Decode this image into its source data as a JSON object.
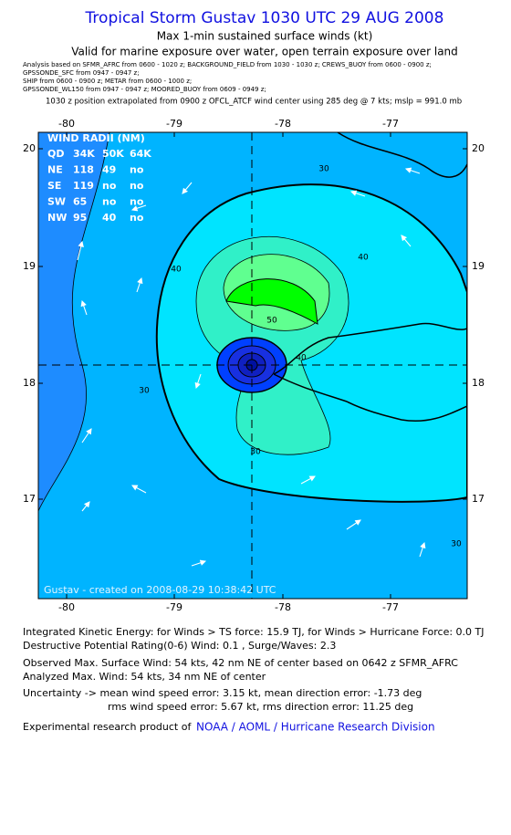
{
  "header": {
    "title": "Tropical Storm Gustav 1030 UTC 29 AUG 2008",
    "subtitle": "Max 1-min sustained surface winds (kt)",
    "valid": "Valid for marine exposure over water, open terrain exposure over land",
    "sources": [
      "Analysis based on  SFMR_AFRC from 0600 - 1020 z;  BACKGROUND_FIELD from 1030 - 1030 z;  CREWS_BUOY from 0600 - 0900 z;",
      "GPSSONDE_SFC from 0947 - 0947 z;",
      "SHIP from 0600 - 0900 z;  METAR from 0600 - 1000 z;",
      "GPSSONDE_WL150 from 0947 - 0947 z;  MOORED_BUOY from 0609 - 0949 z;"
    ],
    "position": "1030 z position extrapolated from 0900 z OFCL_ATCF wind center using 285 deg @ 7 kts; mslp = 991.0 mb"
  },
  "map": {
    "xticks": [
      "-80",
      "-79",
      "-78",
      "-77"
    ],
    "yticks": [
      "20",
      "19",
      "18",
      "17"
    ],
    "contour_labels": [
      "30",
      "40",
      "40",
      "50",
      "40",
      "30",
      "30",
      "30"
    ],
    "credit": "Gustav - created on 2008-08-29 10:38:42 UTC"
  },
  "wind_radii": {
    "title": "WIND RADII (NM)",
    "header": [
      "QD",
      "34K",
      "50K",
      "64K"
    ],
    "rows": [
      [
        "NE",
        "118",
        "49",
        "no"
      ],
      [
        "SE",
        "119",
        "no",
        "no"
      ],
      [
        "SW",
        "65",
        "no",
        "no"
      ],
      [
        "NW",
        "95",
        "40",
        "no"
      ]
    ]
  },
  "footer": {
    "lines": [
      "Integrated Kinetic Energy:  for Winds > TS force: 15.9 TJ,  for Winds > Hurricane Force: 0.0 TJ",
      "Destructive Potential Rating(0-6)   Wind: 0.1 , Surge/Waves: 2.3",
      "Observed Max. Surface Wind: 54 kts, 42 nm NE of center based on 0642 z SFMR_AFRC",
      "Analyzed Max. Wind: 54 kts, 34 nm NE of center",
      "Uncertainty -> mean wind speed error: 3.15 kt,   mean direction error:  -1.73 deg",
      "rms wind speed error: 5.67 kt,   rms direction error: 11.25 deg"
    ],
    "product": "Experimental research product of",
    "org": "NOAA / AOML / Hurricane Research Division"
  }
}
